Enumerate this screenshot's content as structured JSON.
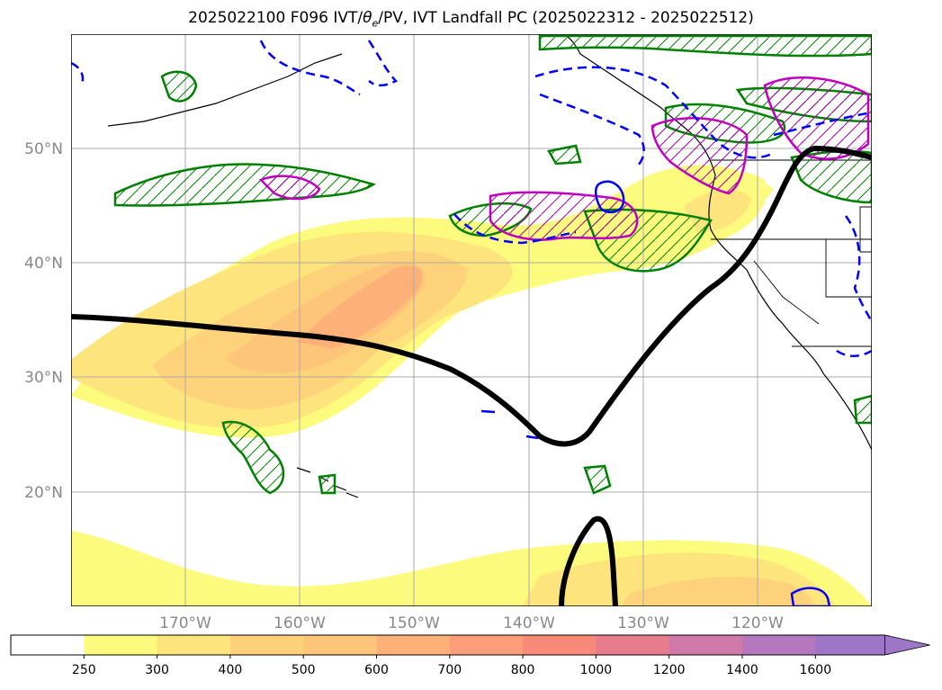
{
  "title": {
    "prefix": "2025022100 F096 IVT/",
    "theta": "θ",
    "theta_sub": "e",
    "suffix": "/PV, IVT Landfall PC (2025022312 - 2025022512)"
  },
  "map": {
    "projection": "PlateCarree",
    "lon_range": [
      -180,
      -110
    ],
    "lat_range": [
      10,
      60
    ],
    "gridlines": true,
    "lat_ticks": [
      {
        "value": 20,
        "label": "20°N"
      },
      {
        "value": 30,
        "label": "30°N"
      },
      {
        "value": 40,
        "label": "40°N"
      },
      {
        "value": 50,
        "label": "50°N"
      }
    ],
    "lon_ticks": [
      {
        "value": -170,
        "label": "170°W"
      },
      {
        "value": -160,
        "label": "160°W"
      },
      {
        "value": -150,
        "label": "150°W"
      },
      {
        "value": -140,
        "label": "140°W"
      },
      {
        "value": -130,
        "label": "130°W"
      },
      {
        "value": -120,
        "label": "120°W"
      }
    ],
    "colors": {
      "landfall_pc_line": "#000000",
      "theta_e_contour": "#008000",
      "pv_contour": "#c000c0",
      "positive_contour": "#0000ff",
      "negative_contour_dashed": "#0000ff",
      "coastline": "#000000",
      "gridline": "#aaaaaa"
    }
  },
  "colorbar": {
    "extend": "max",
    "tick_labels": [
      "250",
      "300",
      "400",
      "500",
      "600",
      "700",
      "800",
      "1000",
      "1200",
      "1400",
      "1600"
    ],
    "colors": [
      "#ffffff",
      "#fdfb7d",
      "#fde47c",
      "#fdd27b",
      "#fdc57a",
      "#fdb179",
      "#fd9e78",
      "#f88a7a",
      "#e77c8d",
      "#cf79a8",
      "#b577bd",
      "#9e76c8"
    ]
  }
}
